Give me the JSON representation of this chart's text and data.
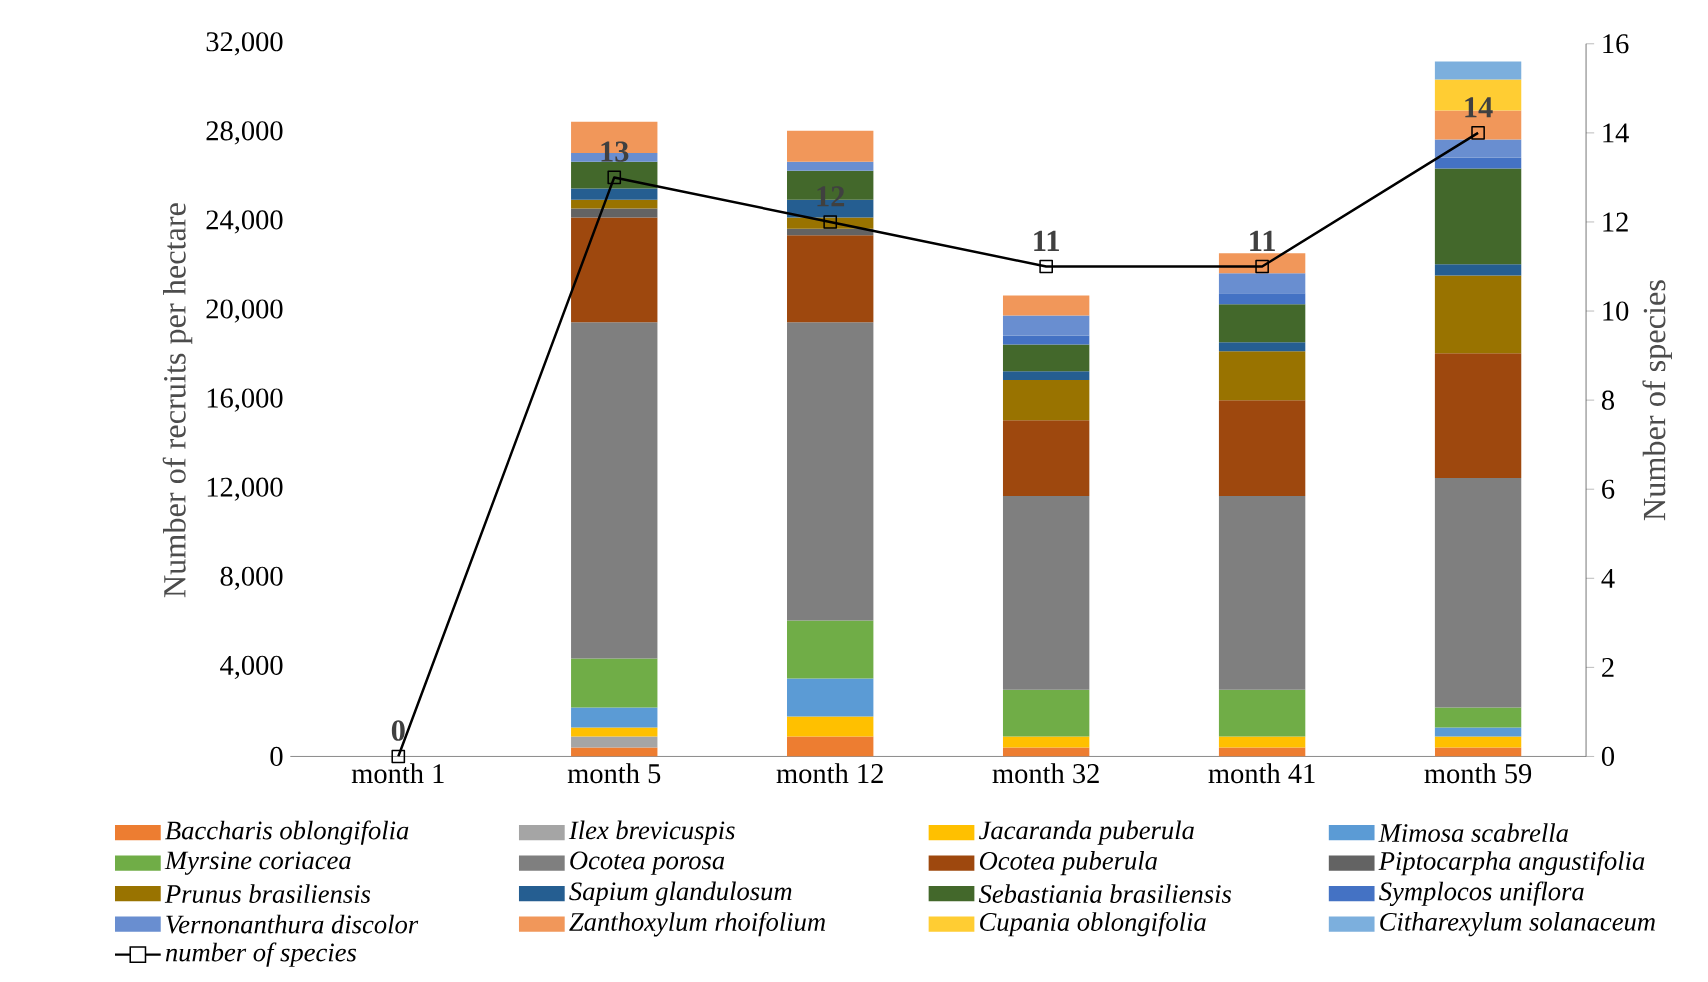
{
  "chart_data": {
    "type": "bar",
    "stacked": true,
    "ylabel": "Number of recruits per hectare",
    "y2label": "Number of species",
    "categories": [
      "month 1",
      "month 5",
      "month 12",
      "month 32",
      "month 41",
      "month 59"
    ],
    "ylim": [
      0,
      32000
    ],
    "yticks": [
      0,
      {
        "value": 4000,
        "label": "4,000"
      },
      {
        "value": 8000,
        "label": "8,000"
      },
      {
        "value": 12000,
        "label": "12,000"
      },
      {
        "value": 16000,
        "label": "16,000"
      },
      {
        "value": 20000,
        "label": "20,000"
      },
      {
        "value": 24000,
        "label": "24,000"
      },
      {
        "value": 28000,
        "label": "28,000"
      },
      {
        "value": 32000,
        "label": "32,000"
      }
    ],
    "y2lim": [
      0,
      16
    ],
    "y2ticks": [
      0,
      2,
      4,
      6,
      8,
      10,
      12,
      14,
      16
    ],
    "legend": "bottom",
    "series": [
      {
        "name": "Baccharis oblongifolia",
        "color": "#ed7d31",
        "values": [
          null,
          400,
          900,
          400,
          400,
          400
        ]
      },
      {
        "name": "Ilex brevicuspis",
        "color": "#a5a5a5",
        "values": [
          null,
          500,
          null,
          null,
          null,
          null
        ]
      },
      {
        "name": "Jacaranda puberula",
        "color": "#ffc000",
        "values": [
          null,
          400,
          900,
          500,
          500,
          500
        ]
      },
      {
        "name": "Mimosa scabrella",
        "color": "#5b9bd5",
        "values": [
          null,
          900,
          1700,
          null,
          null,
          400
        ]
      },
      {
        "name": "Myrsine coriacea",
        "color": "#70ad47",
        "values": [
          null,
          2200,
          2600,
          2100,
          2100,
          900
        ]
      },
      {
        "name": "Ocotea porosa",
        "color": "#7f7f7f",
        "values": [
          null,
          15100,
          13400,
          8700,
          8700,
          10300
        ]
      },
      {
        "name": "Ocotea puberula",
        "color": "#9e480e",
        "values": [
          null,
          4700,
          3900,
          3400,
          4300,
          5600
        ]
      },
      {
        "name": "Piptocarpha angustifolia",
        "color": "#636363",
        "values": [
          null,
          400,
          300,
          null,
          null,
          null
        ]
      },
      {
        "name": "Prunus brasiliensis",
        "color": "#997300",
        "values": [
          null,
          400,
          500,
          1800,
          2200,
          3500
        ]
      },
      {
        "name": "Sapium glandulosum",
        "color": "#255e91",
        "values": [
          null,
          500,
          800,
          400,
          400,
          500
        ]
      },
      {
        "name": "Sebastiania brasiliensis",
        "color": "#43682b",
        "values": [
          null,
          1200,
          1300,
          1200,
          1700,
          4300
        ]
      },
      {
        "name": "Symplocos uniflora",
        "color": "#4472c4",
        "values": [
          null,
          null,
          null,
          400,
          500,
          500
        ]
      },
      {
        "name": "Vernonanthura discolor",
        "color": "#698ed0",
        "values": [
          null,
          400,
          400,
          900,
          900,
          800
        ]
      },
      {
        "name": "Zanthoxylum rhoifolium",
        "color": "#f1975a",
        "values": [
          null,
          1400,
          1400,
          900,
          900,
          1300
        ]
      },
      {
        "name": "Cupania oblongifolia",
        "color": "#ffcd33",
        "values": [
          null,
          null,
          null,
          null,
          null,
          1400
        ]
      },
      {
        "name": "Citharexylum solanaceum",
        "color": "#7cafdd",
        "values": [
          null,
          null,
          null,
          null,
          null,
          800
        ]
      },
      {
        "name": "number of species",
        "type": "line",
        "axis": "y2",
        "color": "#000000",
        "marker": "square",
        "line_style": "solid",
        "values": [
          0,
          13,
          12,
          11,
          11,
          14
        ],
        "value_labels": [
          "0",
          "13",
          "12",
          "11",
          "11",
          "14"
        ]
      }
    ]
  }
}
